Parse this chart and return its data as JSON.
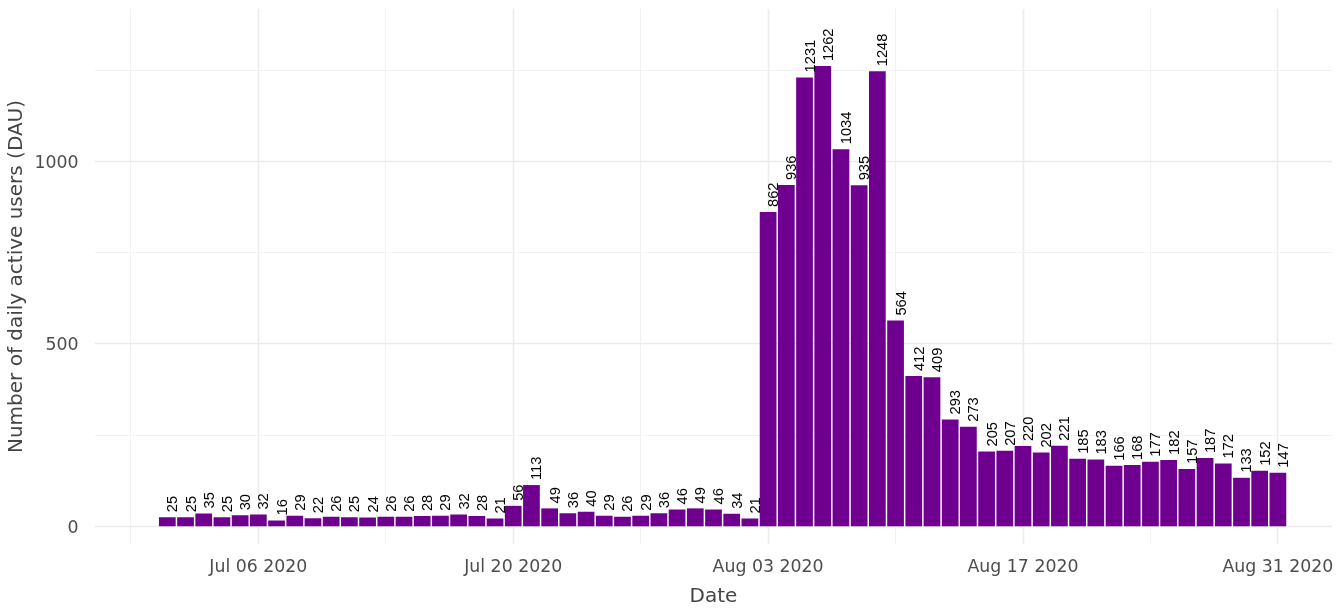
{
  "chart_data": {
    "type": "bar",
    "xlabel": "Date",
    "ylabel": "Number of daily active users (DAU)",
    "x": [
      "2020-07-01",
      "2020-07-02",
      "2020-07-03",
      "2020-07-04",
      "2020-07-05",
      "2020-07-06",
      "2020-07-07",
      "2020-07-08",
      "2020-07-09",
      "2020-07-10",
      "2020-07-11",
      "2020-07-12",
      "2020-07-13",
      "2020-07-14",
      "2020-07-15",
      "2020-07-16",
      "2020-07-17",
      "2020-07-18",
      "2020-07-19",
      "2020-07-20",
      "2020-07-21",
      "2020-07-22",
      "2020-07-23",
      "2020-07-24",
      "2020-07-25",
      "2020-07-26",
      "2020-07-27",
      "2020-07-28",
      "2020-07-29",
      "2020-07-30",
      "2020-07-31",
      "2020-08-01",
      "2020-08-02",
      "2020-08-03",
      "2020-08-04",
      "2020-08-05",
      "2020-08-06",
      "2020-08-07",
      "2020-08-08",
      "2020-08-09",
      "2020-08-10",
      "2020-08-11",
      "2020-08-12",
      "2020-08-13",
      "2020-08-14",
      "2020-08-15",
      "2020-08-16",
      "2020-08-17",
      "2020-08-18",
      "2020-08-19",
      "2020-08-20",
      "2020-08-21",
      "2020-08-22",
      "2020-08-23",
      "2020-08-24",
      "2020-08-25",
      "2020-08-26",
      "2020-08-27",
      "2020-08-28",
      "2020-08-29",
      "2020-08-30",
      "2020-08-31"
    ],
    "values": [
      25,
      25,
      35,
      25,
      30,
      32,
      16,
      29,
      22,
      26,
      25,
      24,
      26,
      26,
      28,
      29,
      32,
      28,
      21,
      56,
      113,
      49,
      36,
      40,
      29,
      26,
      29,
      36,
      46,
      49,
      46,
      34,
      21,
      862,
      936,
      1231,
      1262,
      1034,
      935,
      1248,
      564,
      412,
      409,
      293,
      273,
      205,
      207,
      220,
      202,
      221,
      185,
      183,
      166,
      168,
      177,
      182,
      157,
      187,
      172,
      133,
      152,
      147
    ],
    "color": "#6f008f",
    "data_labels": true,
    "xlim": [
      "2020-06-27",
      "2020-09-03"
    ],
    "xticks": [
      {
        "value": "2020-07-06",
        "label": "Jul 06 2020"
      },
      {
        "value": "2020-07-20",
        "label": "Jul 20 2020"
      },
      {
        "value": "2020-08-03",
        "label": "Aug 03 2020"
      },
      {
        "value": "2020-08-17",
        "label": "Aug 17 2020"
      },
      {
        "value": "2020-08-31",
        "label": "Aug 31 2020"
      }
    ],
    "ylim": [
      -50,
      1420
    ],
    "yticks": [
      0,
      500,
      1000
    ],
    "grid": true
  }
}
